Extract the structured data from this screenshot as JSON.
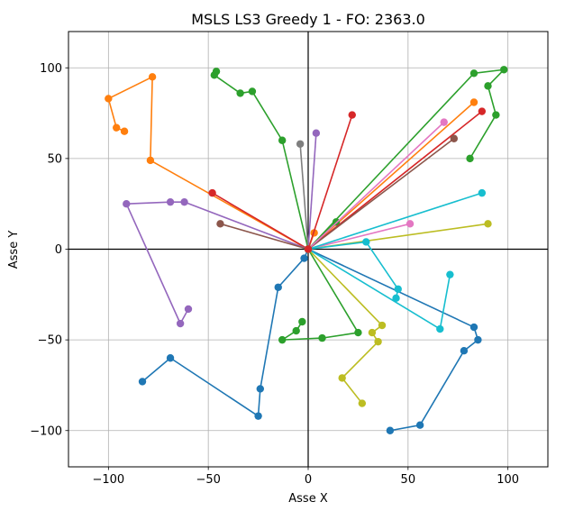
{
  "chart_data": {
    "type": "scatter",
    "title": "MSLS LS3 Greedy 1 - FO: 2363.0",
    "xlabel": "Asse X",
    "ylabel": "Asse Y",
    "xlim": [
      -120,
      120
    ],
    "ylim": [
      -120,
      120
    ],
    "x_ticks": [
      -100,
      -50,
      0,
      50,
      100
    ],
    "y_ticks": [
      -100,
      -50,
      0,
      50,
      100
    ],
    "tick_labels_x": [
      "−100",
      "−50",
      "0",
      "50",
      "100"
    ],
    "tick_labels_y": [
      "−100",
      "−50",
      "0",
      "50",
      "100"
    ],
    "grid": true,
    "origin_axes": true,
    "series": [
      {
        "color": "#1f77b4",
        "points": [
          [
            0,
            0
          ],
          [
            -2,
            -5
          ],
          [
            -15,
            -21
          ],
          [
            -24,
            -77
          ],
          [
            -25,
            -92
          ],
          [
            -69,
            -60
          ],
          [
            -83,
            -73
          ]
        ]
      },
      {
        "color": "#1f77b4",
        "points": [
          [
            0,
            0
          ],
          [
            83,
            -43
          ],
          [
            85,
            -50
          ],
          [
            78,
            -56
          ],
          [
            56,
            -97
          ],
          [
            41,
            -100
          ]
        ]
      },
      {
        "color": "#ff7f0e",
        "points": [
          [
            0,
            0
          ],
          [
            -79,
            49
          ],
          [
            -78,
            95
          ],
          [
            -100,
            83
          ],
          [
            -96,
            67
          ],
          [
            -92,
            65
          ]
        ]
      },
      {
        "color": "#ff7f0e",
        "points": [
          [
            0,
            0
          ],
          [
            3,
            9
          ]
        ]
      },
      {
        "color": "#ff7f0e",
        "points": [
          [
            0,
            0
          ],
          [
            83,
            81
          ]
        ]
      },
      {
        "color": "#2ca02c",
        "points": [
          [
            0,
            0
          ],
          [
            -13,
            60
          ],
          [
            -28,
            87
          ],
          [
            -34,
            86
          ],
          [
            -47,
            96
          ],
          [
            -46,
            98
          ]
        ]
      },
      {
        "color": "#2ca02c",
        "points": [
          [
            0,
            0
          ],
          [
            83,
            97
          ],
          [
            98,
            99
          ],
          [
            90,
            90
          ],
          [
            94,
            74
          ],
          [
            81,
            50
          ]
        ]
      },
      {
        "color": "#2ca02c",
        "points": [
          [
            0,
            0
          ],
          [
            14,
            15
          ]
        ]
      },
      {
        "color": "#2ca02c",
        "points": [
          [
            0,
            0
          ],
          [
            25,
            -46
          ],
          [
            7,
            -49
          ],
          [
            -13,
            -50
          ],
          [
            -6,
            -45
          ],
          [
            -3,
            -40
          ]
        ]
      },
      {
        "color": "#d62728",
        "points": [
          [
            0,
            0
          ],
          [
            -48,
            31
          ]
        ]
      },
      {
        "color": "#d62728",
        "points": [
          [
            0,
            0
          ],
          [
            22,
            74
          ]
        ]
      },
      {
        "color": "#d62728",
        "points": [
          [
            0,
            0
          ],
          [
            87,
            76
          ]
        ]
      },
      {
        "color": "#9467bd",
        "points": [
          [
            0,
            0
          ],
          [
            -62,
            26
          ],
          [
            -69,
            26
          ],
          [
            -91,
            25
          ],
          [
            -64,
            -41
          ],
          [
            -60,
            -33
          ]
        ]
      },
      {
        "color": "#9467bd",
        "points": [
          [
            0,
            0
          ],
          [
            4,
            64
          ]
        ]
      },
      {
        "color": "#8c564b",
        "points": [
          [
            0,
            0
          ],
          [
            -44,
            14
          ]
        ]
      },
      {
        "color": "#8c564b",
        "points": [
          [
            0,
            0
          ],
          [
            73,
            61
          ]
        ]
      },
      {
        "color": "#e377c2",
        "points": [
          [
            0,
            0
          ],
          [
            68,
            70
          ]
        ]
      },
      {
        "color": "#e377c2",
        "points": [
          [
            0,
            0
          ],
          [
            51,
            14
          ]
        ]
      },
      {
        "color": "#7f7f7f",
        "points": [
          [
            0,
            0
          ],
          [
            -4,
            58
          ]
        ]
      },
      {
        "color": "#bcbd22",
        "points": [
          [
            0,
            0
          ],
          [
            90,
            14
          ]
        ]
      },
      {
        "color": "#bcbd22",
        "points": [
          [
            0,
            0
          ],
          [
            37,
            -42
          ],
          [
            32,
            -46
          ],
          [
            35,
            -51
          ],
          [
            17,
            -71
          ],
          [
            27,
            -85
          ]
        ]
      },
      {
        "color": "#17becf",
        "points": [
          [
            0,
            0
          ],
          [
            87,
            31
          ]
        ]
      },
      {
        "color": "#17becf",
        "points": [
          [
            0,
            0
          ],
          [
            29,
            4
          ],
          [
            45,
            -22
          ],
          [
            44,
            -27
          ]
        ]
      },
      {
        "color": "#17becf",
        "points": [
          [
            0,
            0
          ],
          [
            66,
            -44
          ],
          [
            71,
            -14
          ]
        ]
      }
    ]
  }
}
